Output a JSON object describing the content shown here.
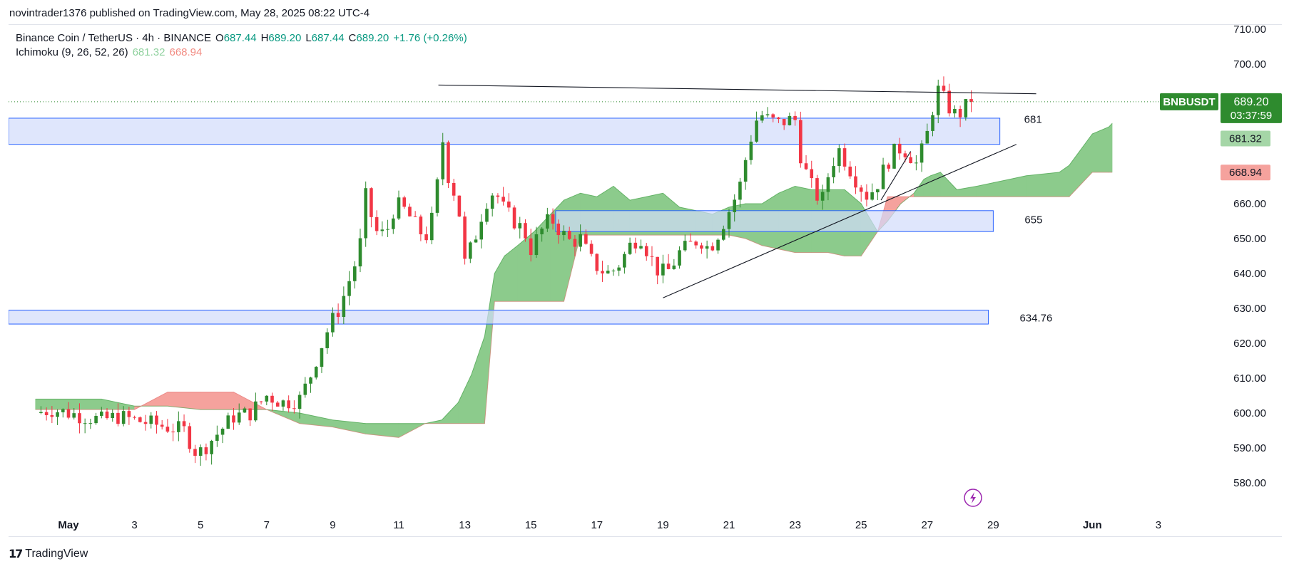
{
  "header": {
    "published_by": "novintrader1376 published on TradingView.com, May 28, 2025 08:22 UTC-4"
  },
  "legend": {
    "symbol": "Binance Coin / TetherUS · 4h · BINANCE",
    "o_label": "O",
    "o_value": "687.44",
    "h_label": "H",
    "h_value": "689.20",
    "l_label": "L",
    "l_value": "687.44",
    "c_label": "C",
    "c_value": "689.20",
    "change": "+1.76 (+0.26%)",
    "indicator": "Ichimoku (9, 26, 52, 26)",
    "ind_val1": "681.32",
    "ind_val2": "668.94"
  },
  "footer": {
    "brand": "TradingView"
  },
  "colors": {
    "up": "#2e8b2e",
    "down": "#f23645",
    "cloud_bull": "#8ccb8c",
    "cloud_bear": "#f5a29d",
    "zone_fill": "#d1dcfb",
    "zone_stroke": "#2962ff",
    "price_label": "#2e8b2e",
    "trend": "#131722"
  },
  "chart_data": {
    "type": "candlestick",
    "title": "Binance Coin / TetherUS · 4h · BINANCE",
    "ylim": [
      571,
      714
    ],
    "y_ticks": [
      "710.00",
      "700.00",
      "660.00",
      "650.00",
      "640.00",
      "630.00",
      "620.00",
      "610.00",
      "600.00",
      "590.00",
      "580.00"
    ],
    "x_ticks": [
      {
        "day": 1,
        "label": "May"
      },
      {
        "day": 3,
        "label": "3"
      },
      {
        "day": 5,
        "label": "5"
      },
      {
        "day": 7,
        "label": "7"
      },
      {
        "day": 9,
        "label": "9"
      },
      {
        "day": 11,
        "label": "11"
      },
      {
        "day": 13,
        "label": "13"
      },
      {
        "day": 15,
        "label": "15"
      },
      {
        "day": 17,
        "label": "17"
      },
      {
        "day": 19,
        "label": "19"
      },
      {
        "day": 21,
        "label": "21"
      },
      {
        "day": 23,
        "label": "23"
      },
      {
        "day": 25,
        "label": "25"
      },
      {
        "day": 27,
        "label": "27"
      },
      {
        "day": 29,
        "label": "29"
      },
      {
        "day": 32,
        "label": "Jun"
      },
      {
        "day": 34,
        "label": "3"
      }
    ],
    "price_close_path": [
      [
        0.0,
        600
      ],
      [
        0.5,
        601
      ],
      [
        1.0,
        600
      ],
      [
        1.5,
        599
      ],
      [
        2.0,
        598
      ],
      [
        2.5,
        599
      ],
      [
        3.0,
        598
      ],
      [
        3.5,
        597
      ],
      [
        4.0,
        596
      ],
      [
        4.5,
        595
      ],
      [
        4.9,
        588
      ],
      [
        5.5,
        594
      ],
      [
        6.0,
        599
      ],
      [
        6.5,
        600
      ],
      [
        7.0,
        605
      ],
      [
        7.5,
        603
      ],
      [
        8.0,
        604
      ],
      [
        8.3,
        610
      ],
      [
        8.6,
        618
      ],
      [
        8.9,
        625
      ],
      [
        9.2,
        630
      ],
      [
        9.5,
        638
      ],
      [
        9.8,
        646
      ],
      [
        10.0,
        662
      ],
      [
        10.3,
        652
      ],
      [
        10.6,
        651
      ],
      [
        10.9,
        660
      ],
      [
        11.2,
        658
      ],
      [
        11.5,
        654
      ],
      [
        11.8,
        650
      ],
      [
        12.1,
        658
      ],
      [
        12.3,
        680
      ],
      [
        12.5,
        668
      ],
      [
        12.8,
        660
      ],
      [
        13.0,
        643
      ],
      [
        13.3,
        650
      ],
      [
        13.6,
        660
      ],
      [
        13.9,
        664
      ],
      [
        14.2,
        658
      ],
      [
        14.5,
        655
      ],
      [
        14.8,
        652
      ],
      [
        15.0,
        647
      ],
      [
        15.3,
        652
      ],
      [
        15.6,
        656
      ],
      [
        15.9,
        652
      ],
      [
        16.2,
        649
      ],
      [
        16.5,
        650
      ],
      [
        16.8,
        644
      ],
      [
        17.1,
        641
      ],
      [
        17.4,
        640
      ],
      [
        17.7,
        643
      ],
      [
        18.0,
        648
      ],
      [
        18.3,
        651
      ],
      [
        18.6,
        645
      ],
      [
        18.9,
        640
      ],
      [
        19.2,
        641
      ],
      [
        19.5,
        646
      ],
      [
        19.8,
        648
      ],
      [
        20.1,
        650
      ],
      [
        20.4,
        647
      ],
      [
        20.7,
        652
      ],
      [
        21.0,
        658
      ],
      [
        21.3,
        664
      ],
      [
        21.6,
        677
      ],
      [
        21.9,
        686
      ],
      [
        22.2,
        684
      ],
      [
        22.5,
        683
      ],
      [
        22.8,
        684
      ],
      [
        23.0,
        684
      ],
      [
        23.2,
        672
      ],
      [
        23.5,
        665
      ],
      [
        23.8,
        660
      ],
      [
        24.0,
        668
      ],
      [
        24.3,
        676
      ],
      [
        24.6,
        671
      ],
      [
        24.9,
        666
      ],
      [
        25.2,
        662
      ],
      [
        25.5,
        666
      ],
      [
        25.8,
        672
      ],
      [
        26.1,
        676
      ],
      [
        26.4,
        675
      ],
      [
        26.7,
        671
      ],
      [
        27.0,
        680
      ],
      [
        27.3,
        693
      ],
      [
        27.5,
        690
      ],
      [
        27.7,
        687
      ],
      [
        27.9,
        685
      ],
      [
        28.1,
        687
      ],
      [
        28.3,
        689.2
      ]
    ],
    "zones": [
      {
        "label": "681",
        "from": 677,
        "to": 684.5,
        "x_start": -1,
        "x_end": 29.2
      },
      {
        "label": "655",
        "from": 652,
        "to": 658,
        "x_start": 15.75,
        "x_end": 29.0
      },
      {
        "label": "634.76",
        "from": 625.5,
        "to": 629.5,
        "x_start": -1,
        "x_end": 28.85
      }
    ],
    "trendlines": [
      {
        "name": "resistance",
        "x1": 12.2,
        "y1": 694,
        "x2": 30.3,
        "y2": 691.5
      },
      {
        "name": "support",
        "x1": 19.0,
        "y1": 633,
        "x2": 29.7,
        "y2": 677
      },
      {
        "name": "mini",
        "x1": 25.6,
        "y1": 661,
        "x2": 26.5,
        "y2": 675
      }
    ],
    "ichimoku": {
      "span_a": [
        [
          0,
          604
        ],
        [
          2,
          604
        ],
        [
          3,
          602
        ],
        [
          4,
          602
        ],
        [
          5,
          601
        ],
        [
          6,
          601
        ],
        [
          7,
          601
        ],
        [
          8,
          600
        ],
        [
          9,
          598
        ],
        [
          10,
          597
        ],
        [
          11,
          597
        ],
        [
          11.8,
          597
        ],
        [
          12.3,
          598
        ],
        [
          12.8,
          603
        ],
        [
          13.2,
          611
        ],
        [
          13.6,
          622
        ],
        [
          13.9,
          640
        ],
        [
          14.2,
          645
        ],
        [
          14.6,
          648
        ],
        [
          15.1,
          652
        ],
        [
          15.6,
          657
        ],
        [
          16.0,
          661
        ],
        [
          16.5,
          663
        ],
        [
          17.0,
          662
        ],
        [
          17.5,
          665
        ],
        [
          18.0,
          661
        ],
        [
          18.5,
          662
        ],
        [
          19.0,
          663
        ],
        [
          19.5,
          659
        ],
        [
          20.0,
          658
        ],
        [
          20.5,
          657
        ],
        [
          21.0,
          659
        ],
        [
          21.5,
          660
        ],
        [
          22.0,
          660
        ],
        [
          22.5,
          663
        ],
        [
          23.0,
          665
        ],
        [
          23.5,
          664
        ],
        [
          24.0,
          664
        ],
        [
          24.5,
          664
        ],
        [
          25.0,
          660
        ],
        [
          25.5,
          652
        ],
        [
          25.8,
          655
        ],
        [
          26.2,
          660
        ],
        [
          26.6,
          663
        ],
        [
          26.9,
          667
        ],
        [
          27.1,
          668
        ],
        [
          27.4,
          669
        ],
        [
          27.9,
          664
        ],
        [
          28.5,
          665
        ],
        [
          29.0,
          666
        ],
        [
          29.5,
          667
        ],
        [
          30.0,
          668
        ],
        [
          31.0,
          669
        ],
        [
          31.3,
          671
        ],
        [
          32.0,
          680
        ],
        [
          32.5,
          682
        ],
        [
          32.6,
          683
        ]
      ],
      "span_b": [
        [
          0,
          601
        ],
        [
          2,
          601
        ],
        [
          3,
          601
        ],
        [
          4,
          606
        ],
        [
          5,
          606
        ],
        [
          6,
          606
        ],
        [
          7,
          601
        ],
        [
          8,
          597
        ],
        [
          9,
          596
        ],
        [
          10,
          594
        ],
        [
          11,
          593
        ],
        [
          11.8,
          597
        ],
        [
          12.3,
          597
        ],
        [
          12.8,
          597
        ],
        [
          13.2,
          597
        ],
        [
          13.6,
          597
        ],
        [
          13.9,
          632
        ],
        [
          14.2,
          632
        ],
        [
          14.6,
          632
        ],
        [
          15.1,
          632
        ],
        [
          15.6,
          632
        ],
        [
          16.0,
          632
        ],
        [
          16.5,
          651
        ],
        [
          17.0,
          651
        ],
        [
          17.5,
          651
        ],
        [
          18.0,
          651
        ],
        [
          18.5,
          651
        ],
        [
          19.0,
          651
        ],
        [
          19.5,
          651
        ],
        [
          20.0,
          651
        ],
        [
          20.5,
          651
        ],
        [
          21.0,
          651
        ],
        [
          21.5,
          650
        ],
        [
          22.0,
          648
        ],
        [
          22.5,
          647
        ],
        [
          23.0,
          646
        ],
        [
          23.5,
          646
        ],
        [
          24.0,
          646
        ],
        [
          24.5,
          645
        ],
        [
          25.0,
          645
        ],
        [
          25.5,
          652
        ],
        [
          25.8,
          662
        ],
        [
          26.2,
          662
        ],
        [
          26.6,
          662
        ],
        [
          26.9,
          662
        ],
        [
          27.1,
          662
        ],
        [
          27.4,
          662
        ],
        [
          27.9,
          662
        ],
        [
          28.5,
          662
        ],
        [
          29.0,
          662
        ],
        [
          29.5,
          662
        ],
        [
          30.0,
          662
        ],
        [
          31.0,
          662
        ],
        [
          31.3,
          662
        ],
        [
          32.0,
          669
        ],
        [
          32.5,
          669
        ],
        [
          32.6,
          669
        ]
      ]
    },
    "price_labels": {
      "symbol": "BNBUSDT",
      "last": "689.20",
      "countdown": "03:37:59",
      "span_a_label": "681.32",
      "span_b_label": "668.94",
      "last_value": 689.2,
      "span_a_value": 681.32,
      "span_b_value": 668.94
    },
    "x_domain": [
      -1.0,
      36.0
    ]
  }
}
